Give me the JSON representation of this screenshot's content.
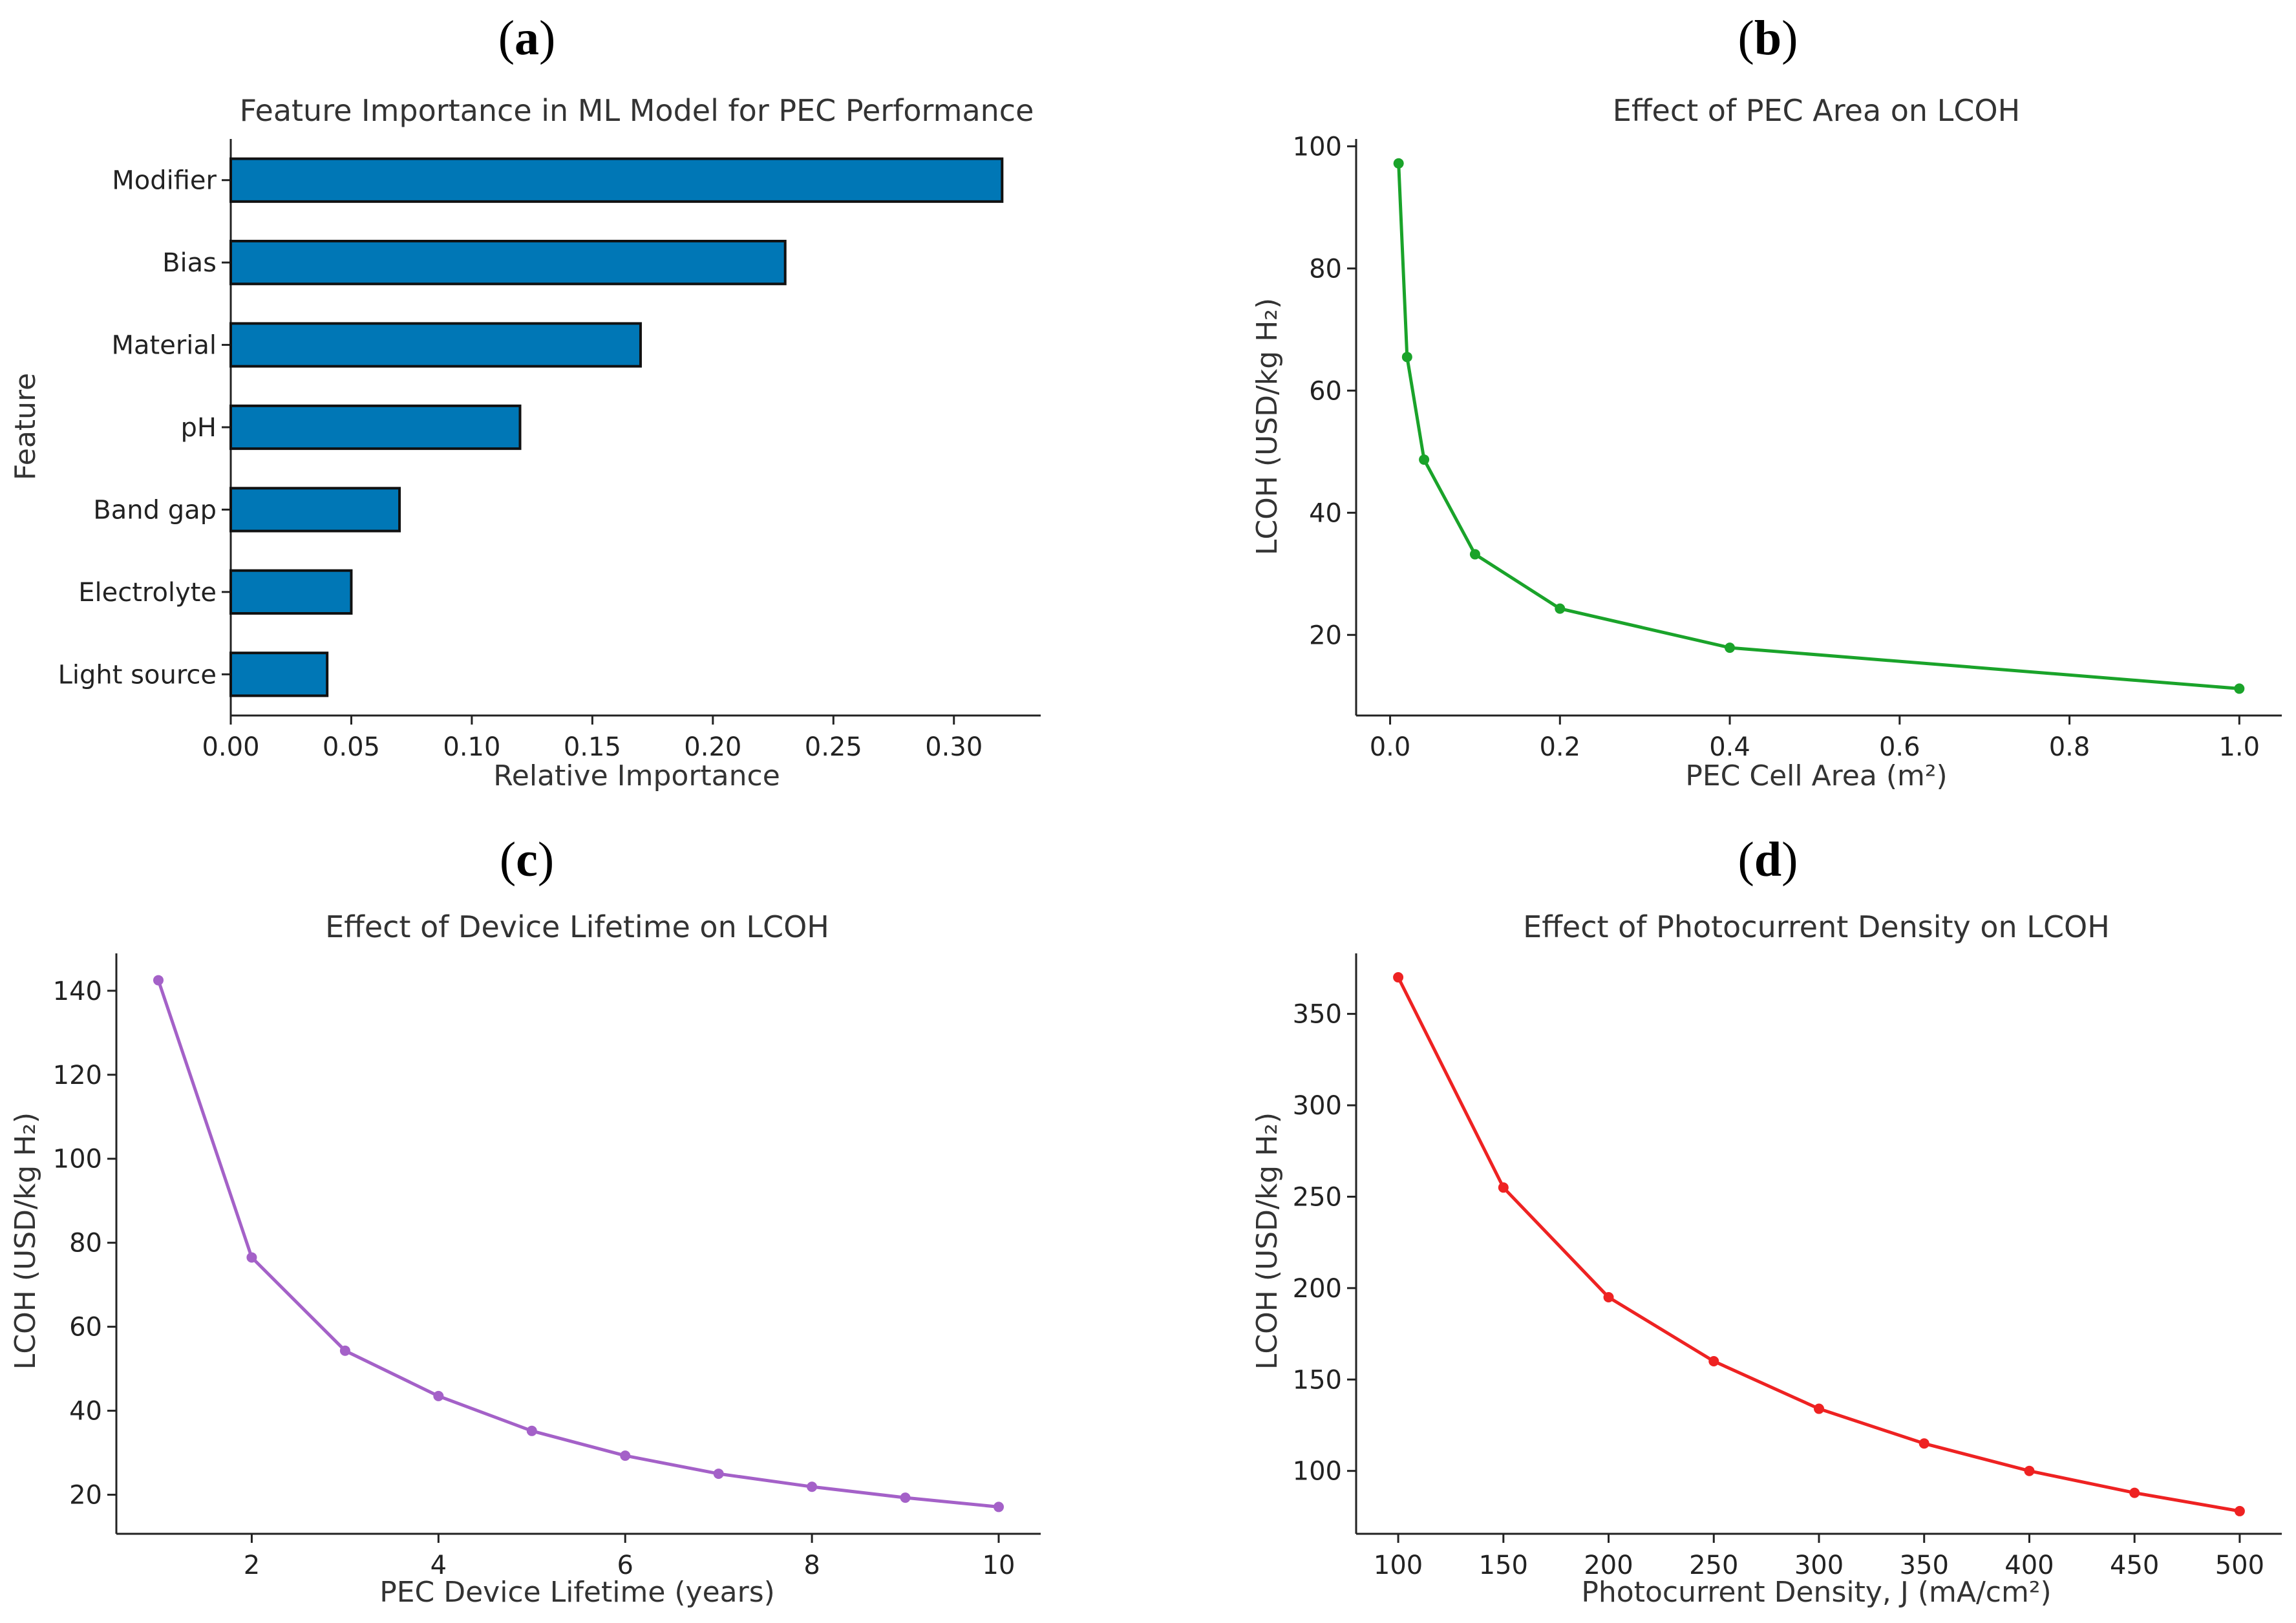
{
  "chart_data": [
    {
      "panel_label": "a",
      "type": "bar",
      "orientation": "horizontal",
      "title": "Feature Importance in ML Model for PEC Performance",
      "xlabel": "Relative Importance",
      "ylabel": "Feature",
      "categories": [
        "Modifier",
        "Bias",
        "Material",
        "pH",
        "Band gap",
        "Electrolyte",
        "Light source"
      ],
      "values": [
        0.32,
        0.23,
        0.17,
        0.12,
        0.07,
        0.05,
        0.04
      ],
      "xlim": [
        0,
        0.336
      ],
      "xticks": [
        0.0,
        0.05,
        0.1,
        0.15,
        0.2,
        0.25,
        0.3
      ],
      "xtick_labels": [
        "0.00",
        "0.05",
        "0.10",
        "0.15",
        "0.20",
        "0.25",
        "0.30"
      ],
      "color": "#0077b6",
      "edge_color": "#111111",
      "grid": false
    },
    {
      "panel_label": "b",
      "type": "line",
      "title": "Effect of PEC Area on LCOH",
      "xlabel": "PEC Cell Area (m²)",
      "ylabel": "LCOH (USD/kg H₂)",
      "x": [
        0.01,
        0.02,
        0.04,
        0.1,
        0.2,
        0.4,
        1.0
      ],
      "y": [
        97.2,
        65.5,
        48.7,
        33.2,
        24.3,
        17.9,
        11.2
      ],
      "xlim": [
        -0.04,
        1.05
      ],
      "ylim": [
        6.8,
        101.2
      ],
      "xticks": [
        0.0,
        0.2,
        0.4,
        0.6,
        0.8,
        1.0
      ],
      "xtick_labels": [
        "0.0",
        "0.2",
        "0.4",
        "0.6",
        "0.8",
        "1.0"
      ],
      "yticks": [
        20,
        40,
        60,
        80,
        100
      ],
      "ytick_labels": [
        "20",
        "40",
        "60",
        "80",
        "100"
      ],
      "color": "#1aa32a",
      "marker": "circle",
      "grid": false
    },
    {
      "panel_label": "c",
      "type": "line",
      "title": "Effect of Device Lifetime on LCOH",
      "xlabel": "PEC Device Lifetime (years)",
      "ylabel": "LCOH (USD/kg H₂)",
      "x": [
        1,
        2,
        3,
        4,
        5,
        6,
        7,
        8,
        9,
        10
      ],
      "y": [
        142.5,
        76.5,
        54.3,
        43.5,
        35.2,
        29.3,
        25.0,
        21.9,
        19.3,
        17.1
      ],
      "xlim": [
        0.55,
        10.45
      ],
      "ylim": [
        10.7,
        148.9
      ],
      "xticks": [
        2,
        4,
        6,
        8,
        10
      ],
      "xtick_labels": [
        "2",
        "4",
        "6",
        "8",
        "10"
      ],
      "yticks": [
        20,
        40,
        60,
        80,
        100,
        120,
        140
      ],
      "ytick_labels": [
        "20",
        "40",
        "60",
        "80",
        "100",
        "120",
        "140"
      ],
      "color": "#a461c8",
      "marker": "circle",
      "grid": false
    },
    {
      "panel_label": "d",
      "type": "line",
      "title": "Effect of Photocurrent Density on LCOH",
      "xlabel": "Photocurrent Density, J (mA/cm²)",
      "ylabel": "LCOH (USD/kg H₂)",
      "x": [
        100,
        150,
        200,
        250,
        300,
        350,
        400,
        450,
        500
      ],
      "y": [
        370,
        255,
        195,
        160,
        134,
        115,
        100,
        88,
        78
      ],
      "xlim": [
        80,
        520
      ],
      "ylim": [
        65.6,
        383.1
      ],
      "xticks": [
        100,
        150,
        200,
        250,
        300,
        350,
        400,
        450,
        500
      ],
      "xtick_labels": [
        "100",
        "150",
        "200",
        "250",
        "300",
        "350",
        "400",
        "450",
        "500"
      ],
      "yticks": [
        100,
        150,
        200,
        250,
        300,
        350
      ],
      "ytick_labels": [
        "100",
        "150",
        "200",
        "250",
        "300",
        "350"
      ],
      "color": "#ee2222",
      "marker": "circle",
      "grid": false
    }
  ]
}
